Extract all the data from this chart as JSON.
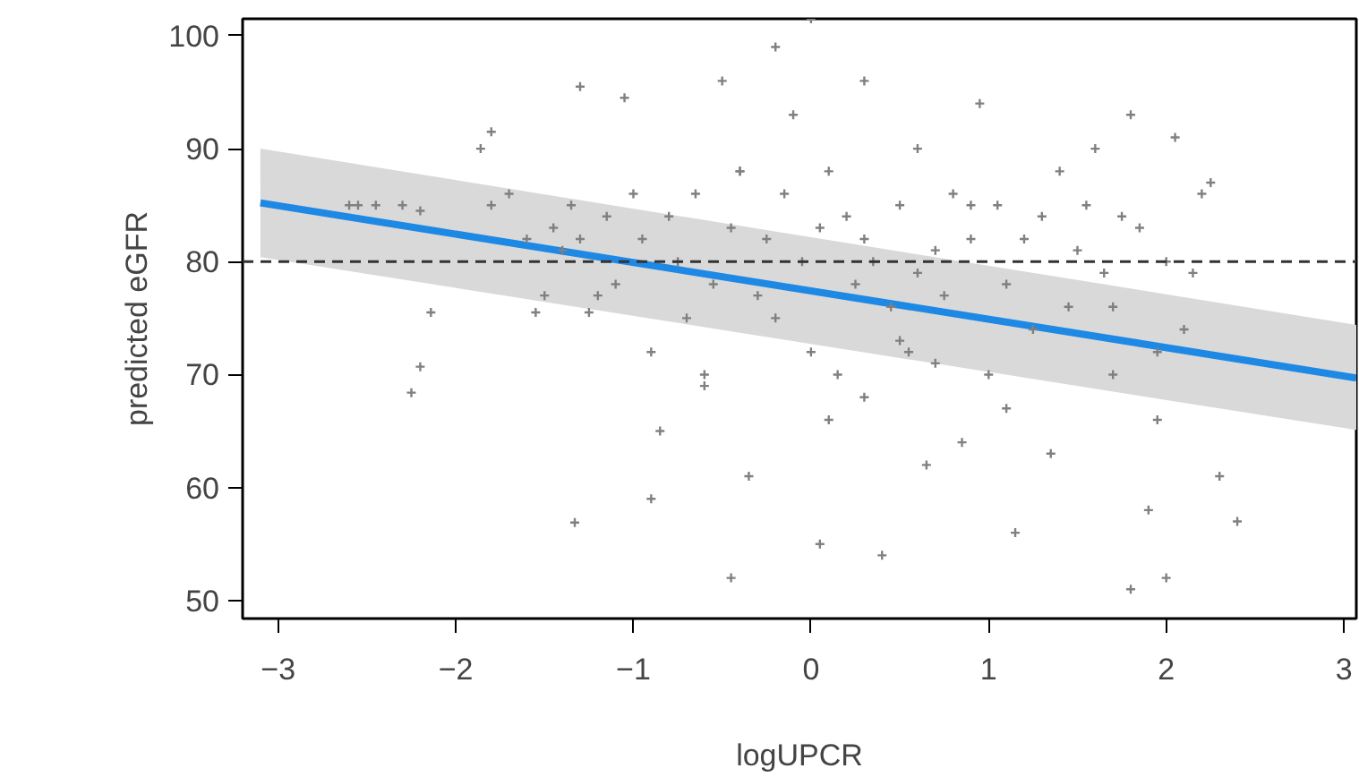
{
  "chart_data": {
    "type": "scatter",
    "xlabel": "logUPCR",
    "ylabel": "predicted eGFR",
    "xlim": [
      -3.2,
      3.07
    ],
    "ylim": [
      48.4,
      101.5
    ],
    "xticks": [
      -3,
      -2,
      -1,
      0,
      1,
      2,
      3
    ],
    "yticks": [
      50,
      60,
      70,
      80,
      90,
      100
    ],
    "grid": false,
    "series": [
      {
        "color": "#808080",
        "x": [
          -2.6,
          -2.55,
          -2.45,
          -2.3,
          -2.2,
          -2.25,
          -2.2,
          -2.14,
          -1.86,
          -1.8,
          -1.8,
          -1.7,
          -1.6,
          -1.55,
          -1.5,
          -1.45,
          -1.4,
          -1.35,
          -1.3,
          -1.3,
          -1.25,
          -1.2,
          -1.33,
          -1.15,
          -1.1,
          -1.05,
          -1.0,
          -0.95,
          -0.9,
          -0.85,
          -0.8,
          -0.75,
          -0.7,
          -0.65,
          -0.6,
          -0.55,
          -0.5,
          -0.45,
          -0.45,
          -0.4,
          -0.35,
          -0.3,
          -0.25,
          -0.2,
          -0.15,
          -0.1,
          -0.05,
          0.0,
          0.0,
          0.05,
          0.05,
          0.1,
          0.15,
          0.2,
          0.25,
          0.3,
          0.3,
          0.35,
          0.4,
          0.45,
          0.5,
          0.55,
          0.6,
          0.65,
          0.7,
          0.75,
          0.8,
          0.85,
          0.9,
          0.95,
          1.0,
          1.05,
          1.1,
          1.15,
          1.2,
          1.25,
          1.3,
          1.35,
          1.4,
          1.45,
          1.5,
          1.55,
          1.6,
          1.65,
          1.7,
          1.75,
          1.8,
          1.8,
          1.85,
          1.9,
          1.95,
          2.0,
          2.05,
          2.1,
          2.15,
          2.2,
          2.25,
          2.3,
          2.4,
          -0.6,
          -0.4,
          0.1,
          0.5,
          0.9,
          1.1,
          -0.9,
          0.3,
          0.7,
          1.7,
          1.95,
          2.0,
          -0.2,
          0.6
        ],
        "values": [
          85,
          85,
          85,
          85,
          84.5,
          68.4,
          70.7,
          75.5,
          90,
          91.5,
          85,
          86,
          82,
          75.5,
          77,
          83,
          81,
          85,
          95.5,
          82,
          75.5,
          77,
          56.9,
          84,
          78,
          94.5,
          86,
          82,
          72,
          65,
          84,
          80,
          75,
          86,
          70,
          78,
          96,
          52,
          83,
          88,
          61,
          77,
          82,
          75,
          86,
          93,
          80,
          101.5,
          72,
          83,
          55,
          88,
          70,
          84,
          78,
          96,
          68,
          80,
          54,
          76,
          85,
          72,
          90,
          62,
          81,
          77,
          86,
          64,
          82,
          94,
          70,
          85,
          78,
          56,
          82,
          74,
          84,
          63,
          88,
          76,
          81,
          85,
          90,
          79,
          70,
          84,
          51,
          93,
          83,
          58,
          66,
          80,
          91,
          74,
          79,
          86,
          87,
          61,
          57,
          69,
          88,
          66,
          73,
          85,
          67,
          59,
          82,
          71,
          76,
          72,
          52,
          99,
          79
        ],
        "marker": "cross"
      },
      {
        "type": "line",
        "color": "#1e88e5",
        "x": [
          -3.1,
          3.07
        ],
        "values": [
          85.2,
          69.7
        ],
        "marker": "none",
        "lower": [
          80.4,
          65.1
        ],
        "upper": [
          90.0,
          74.4
        ]
      }
    ],
    "ref_lines": [
      {
        "axis": "y",
        "value": 80,
        "line_style": "dashed",
        "color": "#333333"
      }
    ]
  }
}
